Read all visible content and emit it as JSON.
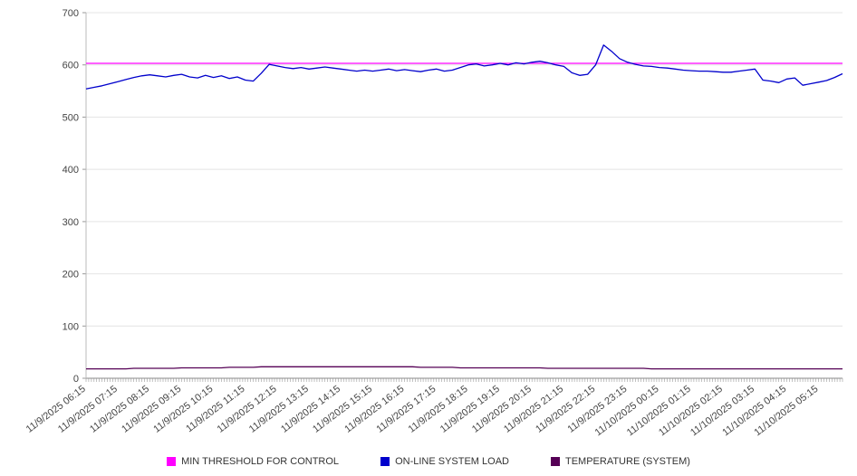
{
  "chart_data": {
    "type": "line",
    "title": "",
    "xlabel": "",
    "ylabel": "",
    "ylim": [
      0,
      700
    ],
    "y_ticks": [
      0,
      100,
      200,
      300,
      400,
      500,
      600,
      700
    ],
    "grid": true,
    "legend_position": "bottom",
    "points_per_label": 4,
    "x_labels": [
      "11/9/2025 06:15",
      "11/9/2025 07:15",
      "11/9/2025 08:15",
      "11/9/2025 09:15",
      "11/9/2025 10:15",
      "11/9/2025 11:15",
      "11/9/2025 12:15",
      "11/9/2025 13:15",
      "11/9/2025 14:15",
      "11/9/2025 15:15",
      "11/9/2025 16:15",
      "11/9/2025 17:15",
      "11/9/2025 18:15",
      "11/9/2025 19:15",
      "11/9/2025 20:15",
      "11/9/2025 21:15",
      "11/9/2025 22:15",
      "11/9/2025 23:15",
      "11/10/2025 00:15",
      "11/10/2025 01:15",
      "11/10/2025 02:15",
      "11/10/2025 03:15",
      "11/10/2025 04:15",
      "11/10/2025 05:15"
    ],
    "series": [
      {
        "name": "MIN THRESHOLD FOR CONTROL",
        "color": "#ff00ff",
        "constant": 603
      },
      {
        "name": "ON-LINE SYSTEM LOAD",
        "color": "#0000cc",
        "values": [
          554,
          557,
          560,
          564,
          568,
          572,
          576,
          579,
          581,
          579,
          577,
          580,
          582,
          577,
          575,
          580,
          576,
          579,
          574,
          577,
          571,
          569,
          584,
          601,
          598,
          595,
          593,
          595,
          592,
          594,
          596,
          594,
          592,
          590,
          588,
          590,
          588,
          590,
          592,
          589,
          591,
          589,
          587,
          590,
          592,
          588,
          590,
          595,
          600,
          602,
          598,
          600,
          603,
          600,
          604,
          602,
          605,
          607,
          604,
          600,
          597,
          585,
          580,
          582,
          600,
          638,
          626,
          612,
          605,
          601,
          598,
          597,
          595,
          594,
          592,
          590,
          589,
          588,
          588,
          587,
          586,
          586,
          588,
          590,
          592,
          571,
          569,
          566,
          573,
          575,
          561,
          564,
          567,
          570,
          576,
          583
        ]
      },
      {
        "name": "TEMPERATURE (SYSTEM)",
        "color": "#550055",
        "values": [
          18,
          18,
          18,
          18,
          18,
          18,
          19,
          19,
          19,
          19,
          19,
          19,
          20,
          20,
          20,
          20,
          20,
          20,
          21,
          21,
          21,
          21,
          22,
          22,
          22,
          22,
          22,
          22,
          22,
          22,
          22,
          22,
          22,
          22,
          22,
          22,
          22,
          22,
          22,
          22,
          22,
          22,
          21,
          21,
          21,
          21,
          21,
          20,
          20,
          20,
          20,
          20,
          20,
          20,
          20,
          20,
          20,
          20,
          19,
          19,
          19,
          19,
          19,
          19,
          19,
          19,
          19,
          19,
          19,
          19,
          19,
          18,
          18,
          18,
          18,
          18,
          18,
          18,
          18,
          18,
          18,
          18,
          18,
          18,
          18,
          18,
          18,
          18,
          18,
          18,
          18,
          18,
          18,
          18,
          18,
          18
        ]
      }
    ]
  }
}
